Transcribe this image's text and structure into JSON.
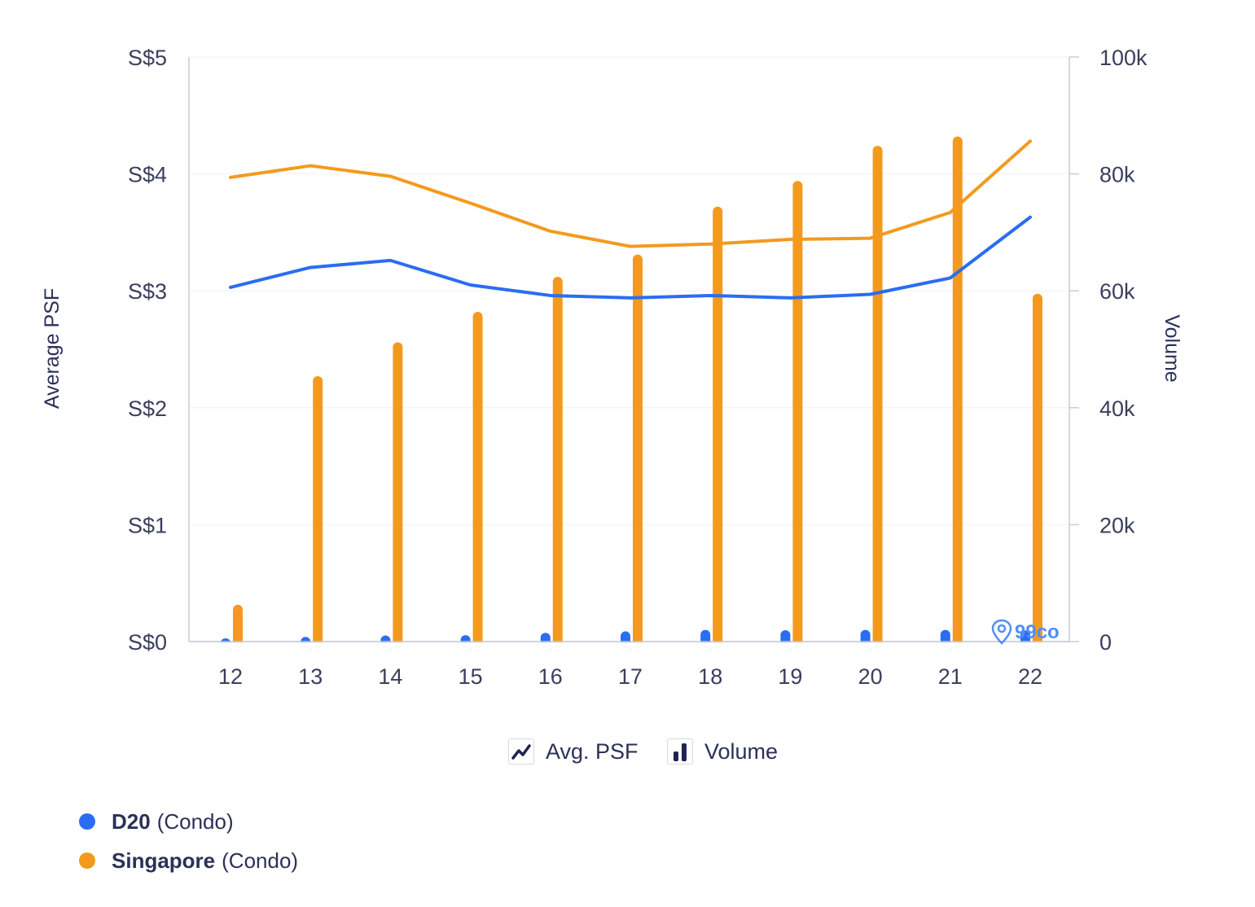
{
  "chart_data": {
    "type": "bar+line",
    "title": "",
    "categories": [
      "12",
      "13",
      "14",
      "15",
      "16",
      "17",
      "18",
      "19",
      "20",
      "21",
      "22"
    ],
    "left_axis": {
      "title": "Average PSF",
      "ticks": [
        "S$0",
        "S$1",
        "S$2",
        "S$3",
        "S$4",
        "S$5"
      ],
      "range": [
        0,
        5
      ]
    },
    "right_axis": {
      "title": "Volume",
      "ticks": [
        "0",
        "20k",
        "40k",
        "60k",
        "80k",
        "100k"
      ],
      "range": [
        0,
        100000
      ]
    },
    "lines": [
      {
        "name": "D20",
        "color": "#2b6df2",
        "values": [
          3.03,
          3.2,
          3.26,
          3.05,
          2.96,
          2.94,
          2.96,
          2.94,
          2.97,
          3.11,
          3.63
        ]
      },
      {
        "name": "Singapore",
        "color": "#f39a1e",
        "values": [
          3.97,
          4.07,
          3.98,
          3.75,
          3.51,
          3.38,
          3.4,
          3.44,
          3.45,
          3.67,
          4.28
        ]
      }
    ],
    "bars": [
      {
        "name": "D20",
        "color": "#2b6df2",
        "values": [
          150,
          800,
          1050,
          1100,
          1500,
          1750,
          2000,
          1950,
          2000,
          2000,
          1900
        ]
      },
      {
        "name": "Singapore",
        "color": "#f39a1e",
        "values": [
          6300,
          45400,
          51200,
          56400,
          62400,
          66200,
          74400,
          78800,
          84800,
          86400,
          59500
        ]
      }
    ],
    "grid": true,
    "legend_position": "bottom-left"
  },
  "toggles": [
    {
      "label": "Avg. PSF",
      "icon": "line-chart-icon"
    },
    {
      "label": "Volume",
      "icon": "bar-chart-icon"
    }
  ],
  "legend": [
    {
      "name": "D20",
      "type": "(Condo)",
      "color": "#2b6df2"
    },
    {
      "name": "Singapore",
      "type": "(Condo)",
      "color": "#f39a1e"
    }
  ],
  "watermark": "99co"
}
